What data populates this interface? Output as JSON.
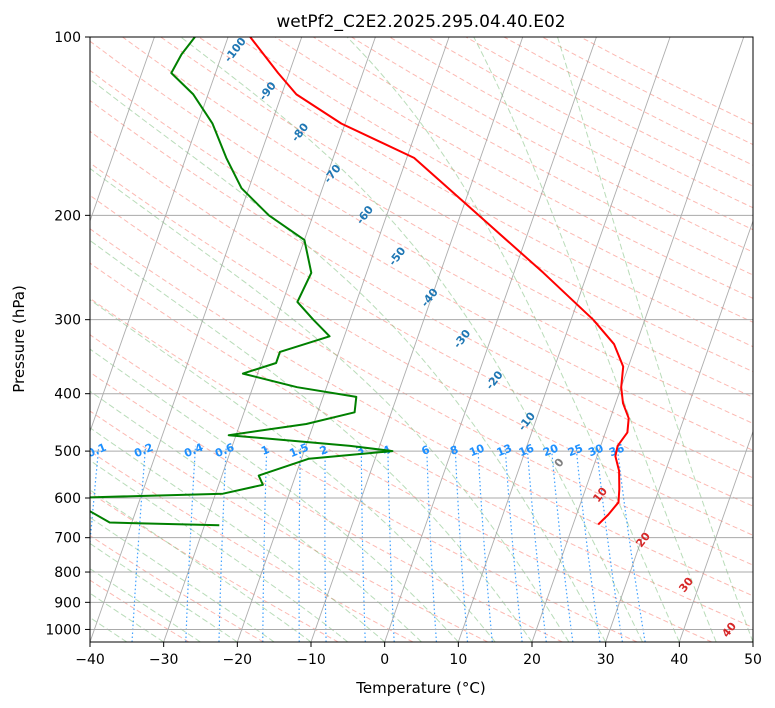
{
  "chart_data": {
    "type": "line",
    "subtype": "skew-t log-p sounding",
    "title": "wetPf2_C2E2.2025.295.04.40.E02",
    "xlabel": "Temperature (°C)",
    "ylabel": "Pressure (hPa)",
    "xlim": [
      -40,
      50
    ],
    "ylim": [
      1050,
      100
    ],
    "y_scale": "log",
    "x_ticks": [
      -40,
      -30,
      -20,
      -10,
      0,
      10,
      20,
      30,
      40,
      50
    ],
    "y_ticks": [
      100,
      200,
      300,
      400,
      500,
      600,
      700,
      800,
      900,
      1000
    ],
    "grid": true,
    "colors": {
      "temperature": "#ff0000",
      "dewpoint": "#008000",
      "dry_adiabat": "#fa8072",
      "moist_adiabat": "#80c080",
      "mixing_ratio": "#1e90ff",
      "isotherm": "#999999"
    },
    "series": [
      {
        "name": "",
        "color": "#ff0000",
        "points": [
          {
            "x": 23.4,
            "y": 665
          },
          {
            "x": 24.3,
            "y": 640
          },
          {
            "x": 25.1,
            "y": 610
          },
          {
            "x": 24.6,
            "y": 580
          },
          {
            "x": 23.7,
            "y": 540
          },
          {
            "x": 22.5,
            "y": 510
          },
          {
            "x": 22.3,
            "y": 490
          },
          {
            "x": 23.0,
            "y": 465
          },
          {
            "x": 22.5,
            "y": 440
          },
          {
            "x": 21.0,
            "y": 415
          },
          {
            "x": 20.0,
            "y": 390
          },
          {
            "x": 19.3,
            "y": 360
          },
          {
            "x": 17.0,
            "y": 330
          },
          {
            "x": 13.0,
            "y": 300
          },
          {
            "x": 4.0,
            "y": 250
          },
          {
            "x": -7.5,
            "y": 200
          },
          {
            "x": -19.0,
            "y": 160
          },
          {
            "x": -30.5,
            "y": 140
          },
          {
            "x": -38.0,
            "y": 125
          },
          {
            "x": -41.5,
            "y": 115
          },
          {
            "x": -47.0,
            "y": 100
          }
        ]
      },
      {
        "name": "",
        "color": "#008000",
        "points": [
          {
            "x": -28.0,
            "y": 667
          },
          {
            "x": -43.0,
            "y": 660
          },
          {
            "x": -50.0,
            "y": 600
          },
          {
            "x": -29.0,
            "y": 590
          },
          {
            "x": -24.0,
            "y": 570
          },
          {
            "x": -25.0,
            "y": 550
          },
          {
            "x": -19.0,
            "y": 515
          },
          {
            "x": -8.0,
            "y": 500
          },
          {
            "x": -14.0,
            "y": 490
          },
          {
            "x": -31.0,
            "y": 470
          },
          {
            "x": -21.0,
            "y": 450
          },
          {
            "x": -15.0,
            "y": 430
          },
          {
            "x": -15.5,
            "y": 405
          },
          {
            "x": -24.0,
            "y": 390
          },
          {
            "x": -32.0,
            "y": 370
          },
          {
            "x": -28.0,
            "y": 355
          },
          {
            "x": -28.0,
            "y": 340
          },
          {
            "x": -22.0,
            "y": 320
          },
          {
            "x": -25.0,
            "y": 300
          },
          {
            "x": -28.0,
            "y": 280
          },
          {
            "x": -27.5,
            "y": 250
          },
          {
            "x": -30.0,
            "y": 220
          },
          {
            "x": -36.0,
            "y": 200
          },
          {
            "x": -41.0,
            "y": 180
          },
          {
            "x": -44.5,
            "y": 160
          },
          {
            "x": -48.0,
            "y": 140
          },
          {
            "x": -52.0,
            "y": 125
          },
          {
            "x": -56.0,
            "y": 115
          },
          {
            "x": -55.5,
            "y": 107
          },
          {
            "x": -54.5,
            "y": 100
          }
        ]
      }
    ],
    "moist_adiabat_labels": [
      "-100",
      "-90",
      "-80",
      "-70",
      "-60",
      "-50",
      "-40",
      "-30",
      "-20",
      "-10",
      "0",
      "10",
      "20",
      "30",
      "40"
    ],
    "mixing_ratio_labels": [
      "0.1",
      "0.2",
      "0.4",
      "0.6",
      "1",
      "1.5",
      "2",
      "3",
      "4",
      "6",
      "8",
      "10",
      "13",
      "16",
      "20",
      "25",
      "30",
      "36"
    ]
  }
}
